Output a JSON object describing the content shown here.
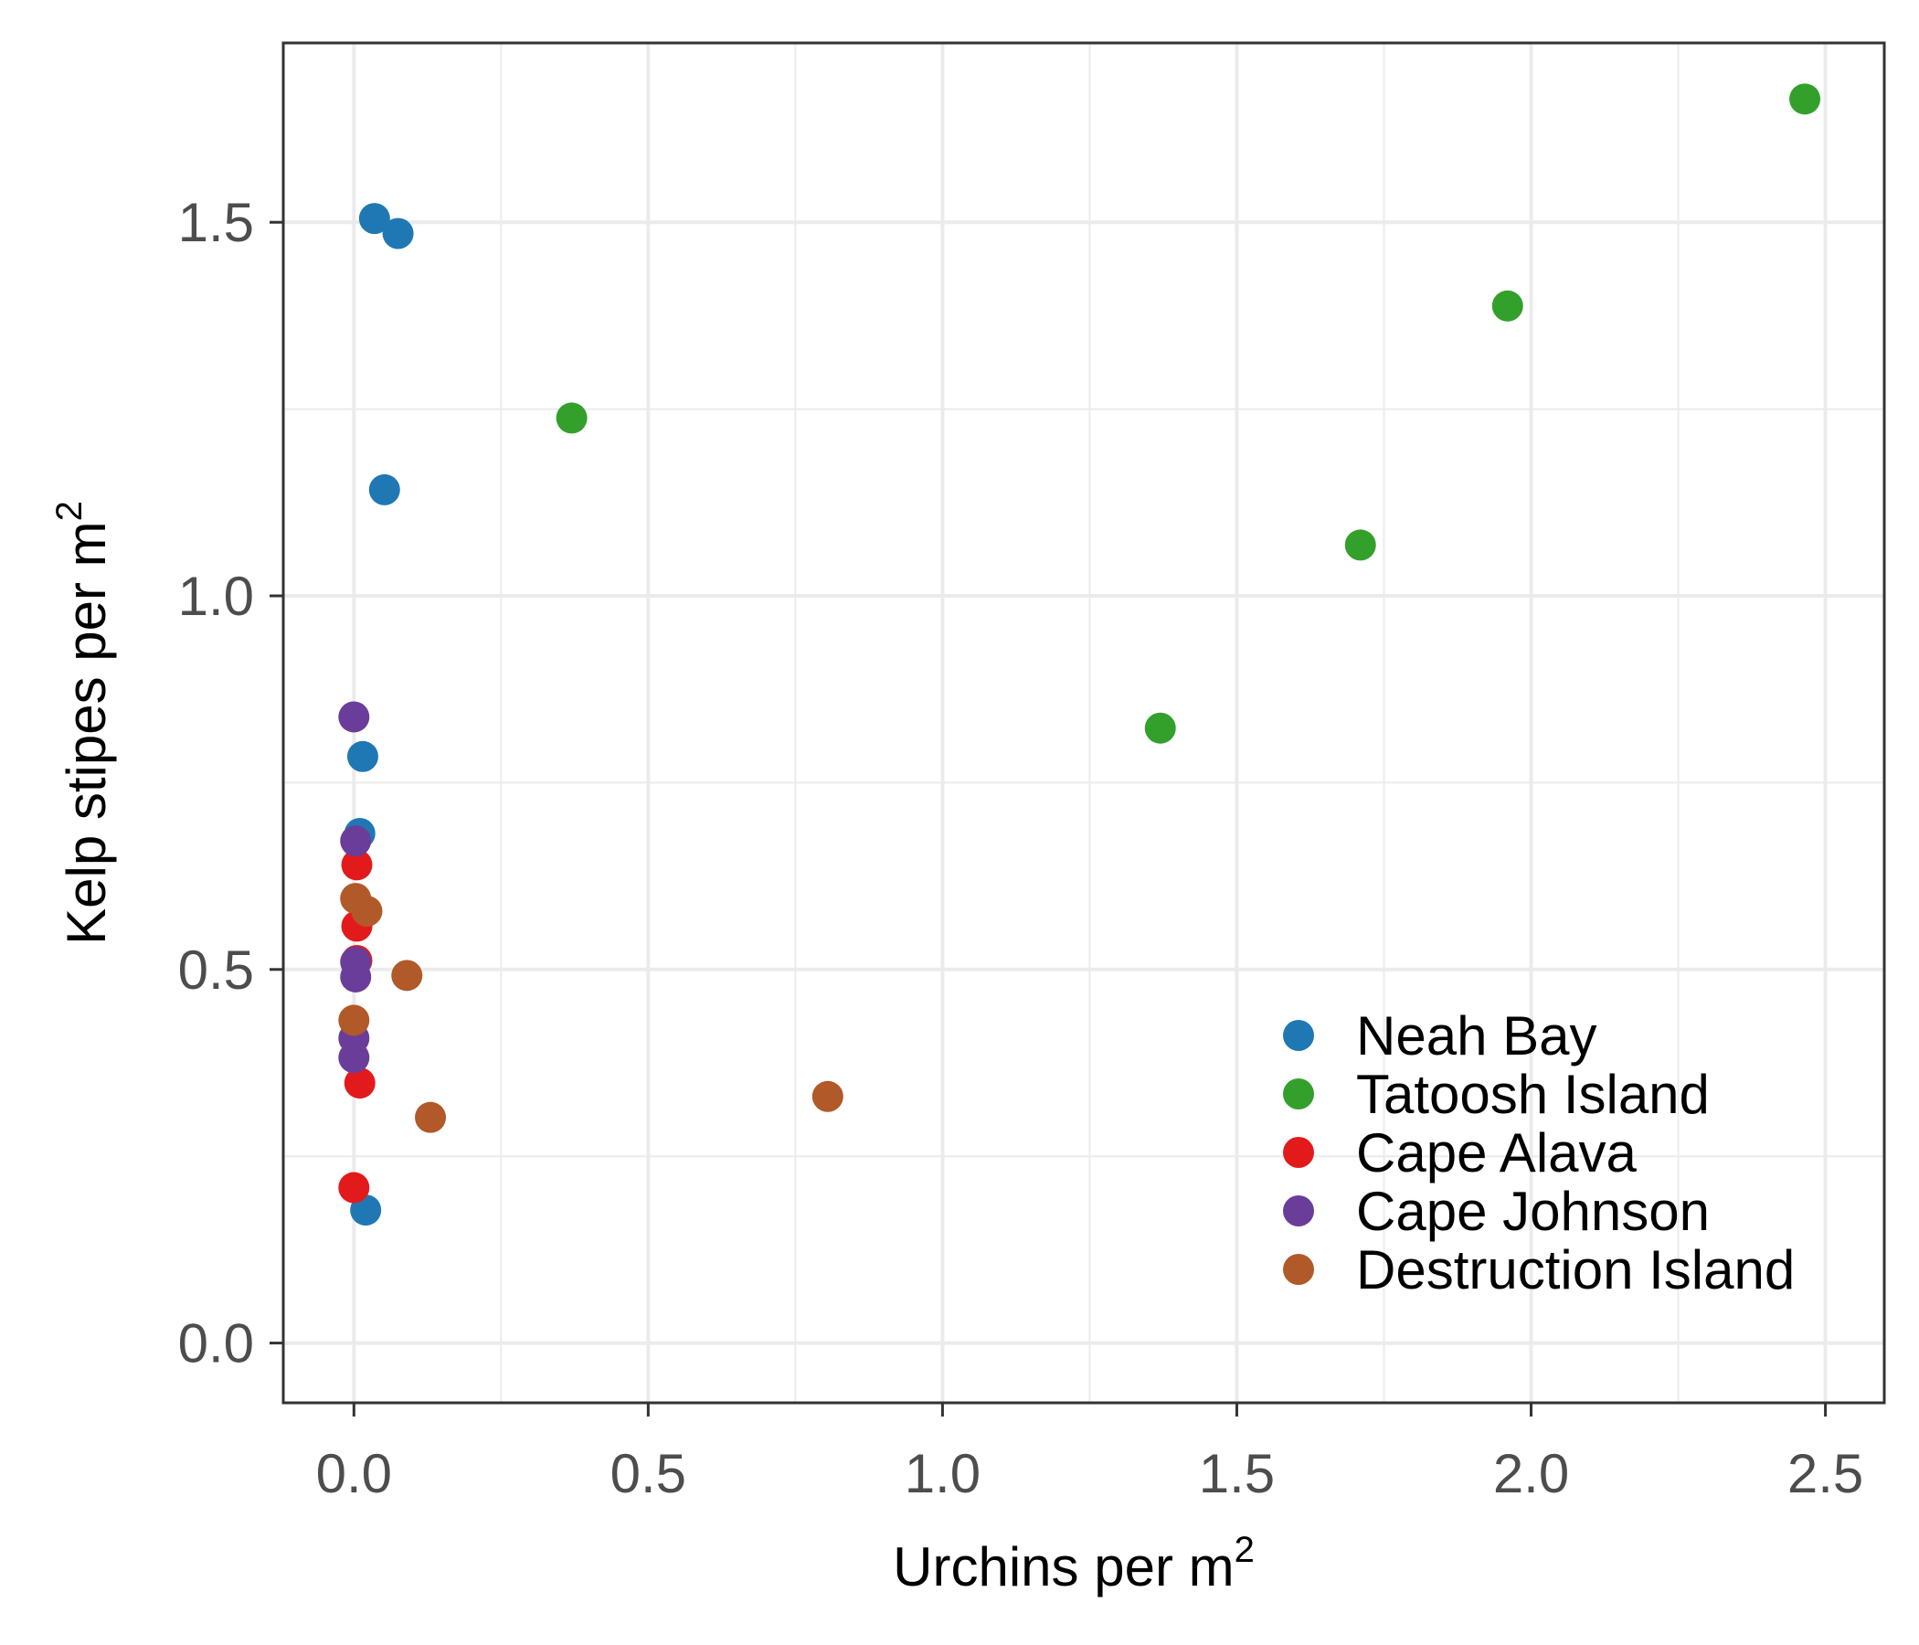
{
  "chart_data": {
    "type": "scatter",
    "title": "",
    "xlabel": "Urchins per m",
    "xlabel_superscript": "2",
    "ylabel": "Kelp stipes per m",
    "ylabel_superscript": "2",
    "xlim": [
      -0.12,
      2.6
    ],
    "ylim": [
      -0.08,
      1.74
    ],
    "x_ticks": [
      0.0,
      0.5,
      1.0,
      1.5,
      2.0,
      2.5
    ],
    "x_tick_labels": [
      "0.0",
      "0.5",
      "1.0",
      "1.5",
      "2.0",
      "2.5"
    ],
    "y_ticks": [
      0.0,
      0.5,
      1.0,
      1.5
    ],
    "y_tick_labels": [
      "0.0",
      "0.5",
      "1.0",
      "1.5"
    ],
    "grid": true,
    "legend_position": "bottom-right",
    "series": [
      {
        "name": "Neah Bay",
        "color": "#1f78b4",
        "points": [
          {
            "x": 0.035,
            "y": 1.505
          },
          {
            "x": 0.075,
            "y": 1.485
          },
          {
            "x": 0.052,
            "y": 1.142
          },
          {
            "x": 0.015,
            "y": 0.785
          },
          {
            "x": 0.01,
            "y": 0.682
          },
          {
            "x": 0.02,
            "y": 0.178
          }
        ]
      },
      {
        "name": "Tatoosh Island",
        "color": "#33a02c",
        "points": [
          {
            "x": 2.465,
            "y": 1.665
          },
          {
            "x": 1.96,
            "y": 1.388
          },
          {
            "x": 0.37,
            "y": 1.238
          },
          {
            "x": 1.71,
            "y": 1.068
          },
          {
            "x": 1.37,
            "y": 0.823
          }
        ]
      },
      {
        "name": "Cape Alava",
        "color": "#e31a1c",
        "points": [
          {
            "x": 0.005,
            "y": 0.64
          },
          {
            "x": 0.005,
            "y": 0.558
          },
          {
            "x": 0.005,
            "y": 0.512
          },
          {
            "x": 0.01,
            "y": 0.348
          },
          {
            "x": 0.0,
            "y": 0.208
          }
        ]
      },
      {
        "name": "Cape Johnson",
        "color": "#6a3d9a",
        "points": [
          {
            "x": 0.0,
            "y": 0.838
          },
          {
            "x": 0.003,
            "y": 0.672
          },
          {
            "x": 0.003,
            "y": 0.51
          },
          {
            "x": 0.003,
            "y": 0.49
          },
          {
            "x": 0.0,
            "y": 0.408
          },
          {
            "x": 0.0,
            "y": 0.382
          }
        ]
      },
      {
        "name": "Destruction Island",
        "color": "#b15928",
        "points": [
          {
            "x": 0.003,
            "y": 0.595
          },
          {
            "x": 0.022,
            "y": 0.578
          },
          {
            "x": 0.09,
            "y": 0.492
          },
          {
            "x": 0.0,
            "y": 0.432
          },
          {
            "x": 0.13,
            "y": 0.302
          },
          {
            "x": 0.805,
            "y": 0.33
          }
        ]
      }
    ]
  }
}
